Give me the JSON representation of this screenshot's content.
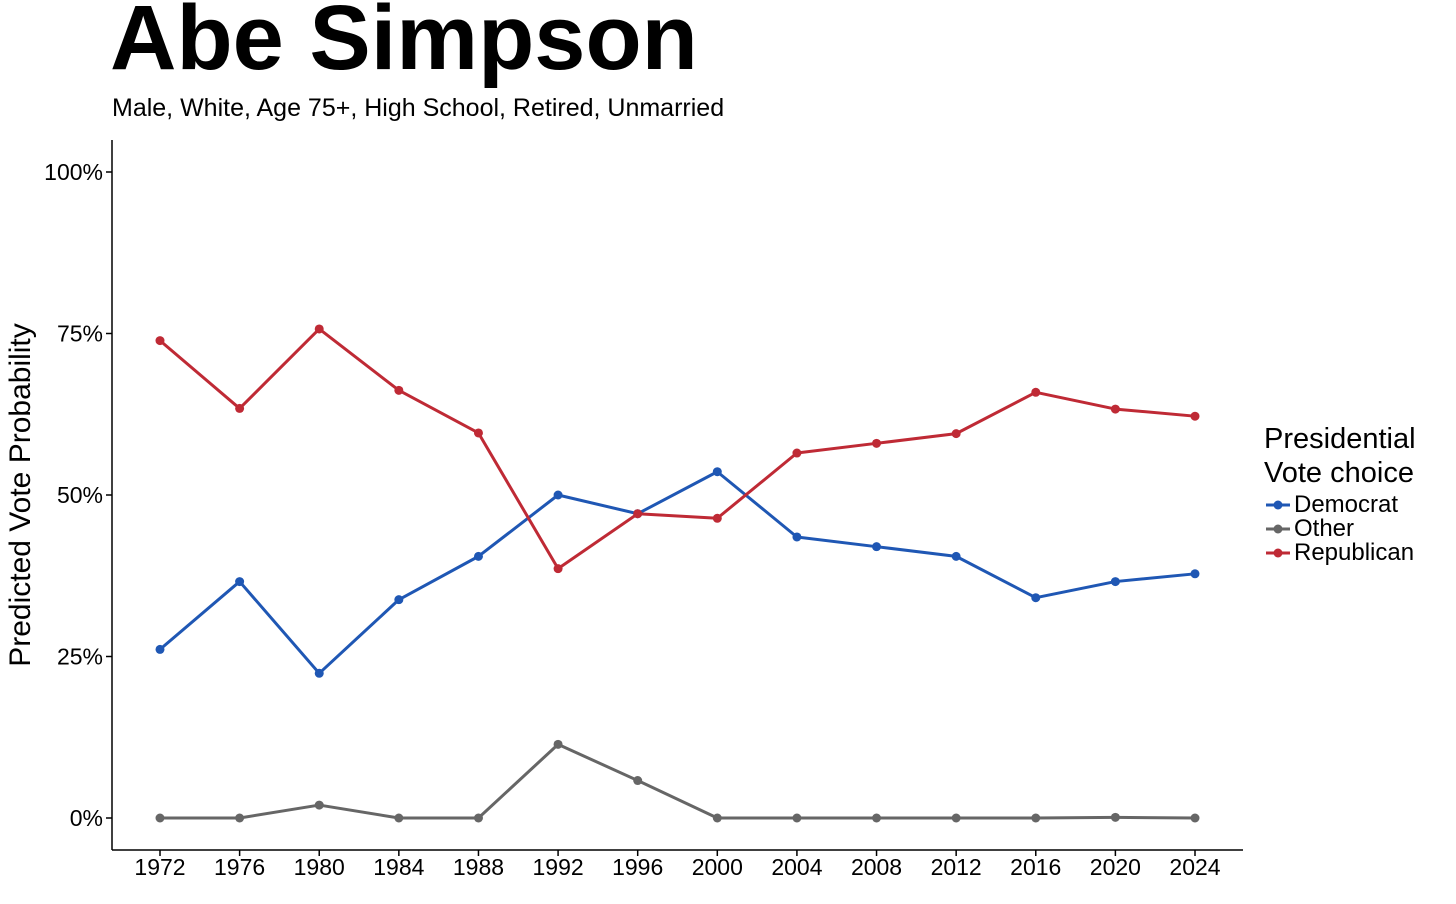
{
  "chart_data": {
    "type": "line",
    "title": "Abe Simpson",
    "subtitle": "Male, White, Age 75+, High School, Retired, Unmarried",
    "xlabel": "",
    "ylabel": "Predicted Vote Probability",
    "x": [
      1972,
      1976,
      1980,
      1984,
      1988,
      1992,
      1996,
      2000,
      2004,
      2008,
      2012,
      2016,
      2020,
      2024
    ],
    "ylim": [
      -0.05,
      1.05
    ],
    "yticks": [
      0,
      0.25,
      0.5,
      0.75,
      1.0
    ],
    "ytick_labels": [
      "0%",
      "25%",
      "50%",
      "75%",
      "100%"
    ],
    "grid": false,
    "legend": {
      "title": "Presidential\nVote choice",
      "placement": "right"
    },
    "series": [
      {
        "name": "Democrat",
        "color": "#1f57b4",
        "values": [
          0.261,
          0.366,
          0.224,
          0.338,
          0.405,
          0.5,
          0.471,
          0.536,
          0.435,
          0.42,
          0.405,
          0.341,
          0.366,
          0.378
        ]
      },
      {
        "name": "Other",
        "color": "#666666",
        "values": [
          0.0,
          0.0,
          0.02,
          0.0,
          0.0,
          0.114,
          0.058,
          0.0,
          0.0,
          0.0,
          0.0,
          0.0,
          0.001,
          0.0
        ]
      },
      {
        "name": "Republican",
        "color": "#bf2a35",
        "values": [
          0.739,
          0.634,
          0.757,
          0.662,
          0.596,
          0.386,
          0.471,
          0.464,
          0.565,
          0.58,
          0.595,
          0.659,
          0.633,
          0.622
        ]
      }
    ]
  }
}
